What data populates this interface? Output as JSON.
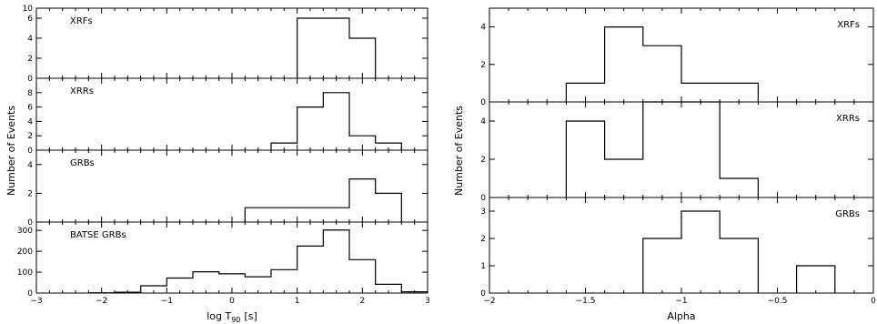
{
  "chart_data": [
    {
      "type": "histogram",
      "xlabel": "log T",
      "xlabel_sub": "90",
      "xlabel_unit": "[s]",
      "ylabel": "Number of Events",
      "xlim": [
        -3,
        3
      ],
      "x_ticks": [
        -3,
        -2,
        -1,
        0,
        1,
        2,
        3
      ],
      "x_tick_labels": [
        "−3",
        "−2",
        "−1",
        "0",
        "1",
        "2",
        "3"
      ],
      "minor_step": 0.2,
      "panels": [
        {
          "label": "XRFs",
          "ylim": [
            0,
            7
          ],
          "y_ticks": [
            0,
            2,
            4,
            6
          ],
          "y_tick_labels": [
            "0",
            "2",
            "4",
            "6"
          ],
          "top_label": "10",
          "bins": [
            {
              "x0": 1.0,
              "x1": 1.8,
              "y": 6
            },
            {
              "x0": 1.8,
              "x1": 2.2,
              "y": 4
            }
          ]
        },
        {
          "label": "XRRs",
          "ylim": [
            0,
            10
          ],
          "y_ticks": [
            0,
            2,
            4,
            6,
            8
          ],
          "y_tick_labels": [
            "0",
            "2",
            "4",
            "6",
            "8"
          ],
          "bins": [
            {
              "x0": 0.6,
              "x1": 1.0,
              "y": 1
            },
            {
              "x0": 1.0,
              "x1": 1.4,
              "y": 6
            },
            {
              "x0": 1.4,
              "x1": 1.8,
              "y": 8
            },
            {
              "x0": 1.8,
              "x1": 2.2,
              "y": 2
            },
            {
              "x0": 2.2,
              "x1": 2.6,
              "y": 1
            }
          ]
        },
        {
          "label": "GRBs",
          "ylim": [
            0,
            5
          ],
          "y_ticks": [
            0,
            2,
            4
          ],
          "y_tick_labels": [
            "0",
            "2",
            "4"
          ],
          "bins": [
            {
              "x0": 0.2,
              "x1": 1.4,
              "y": 1
            },
            {
              "x0": 1.4,
              "x1": 1.8,
              "y": 1
            },
            {
              "x0": 1.8,
              "x1": 2.2,
              "y": 3
            },
            {
              "x0": 2.2,
              "x1": 2.6,
              "y": 2
            }
          ]
        },
        {
          "label": "BATSE GRBs",
          "ylim": [
            0,
            340
          ],
          "y_ticks": [
            0,
            100,
            200,
            300
          ],
          "y_tick_labels": [
            "0",
            "100",
            "200",
            "300"
          ],
          "bins": [
            {
              "x0": -2.2,
              "x1": -1.8,
              "y": 1
            },
            {
              "x0": -1.8,
              "x1": -1.4,
              "y": 4
            },
            {
              "x0": -1.4,
              "x1": -1.0,
              "y": 35
            },
            {
              "x0": -1.0,
              "x1": -0.6,
              "y": 72
            },
            {
              "x0": -0.6,
              "x1": -0.2,
              "y": 102
            },
            {
              "x0": -0.2,
              "x1": 0.2,
              "y": 92
            },
            {
              "x0": 0.2,
              "x1": 0.6,
              "y": 78
            },
            {
              "x0": 0.6,
              "x1": 1.0,
              "y": 112
            },
            {
              "x0": 1.0,
              "x1": 1.4,
              "y": 225
            },
            {
              "x0": 1.4,
              "x1": 1.8,
              "y": 302
            },
            {
              "x0": 1.8,
              "x1": 2.2,
              "y": 160
            },
            {
              "x0": 2.2,
              "x1": 2.6,
              "y": 42
            },
            {
              "x0": 2.6,
              "x1": 3.0,
              "y": 6
            }
          ]
        }
      ]
    },
    {
      "type": "histogram",
      "xlabel": "Alpha",
      "ylabel": "Number of Events",
      "xlim": [
        -2,
        0
      ],
      "x_ticks": [
        -2,
        -1.5,
        -1,
        -0.5,
        0
      ],
      "x_tick_labels": [
        "−2",
        "−1.5",
        "−1",
        "−0.5",
        "0"
      ],
      "minor_step": 0.1,
      "panels": [
        {
          "label": "XRFs",
          "ylim": [
            0,
            5
          ],
          "y_ticks": [
            0,
            2,
            4
          ],
          "y_tick_labels": [
            "0",
            "2",
            "4"
          ],
          "bins": [
            {
              "x0": -1.6,
              "x1": -1.4,
              "y": 1
            },
            {
              "x0": -1.4,
              "x1": -1.2,
              "y": 4
            },
            {
              "x0": -1.2,
              "x1": -1.0,
              "y": 3
            },
            {
              "x0": -1.0,
              "x1": -0.6,
              "y": 1
            }
          ]
        },
        {
          "label": "XRRs",
          "ylim": [
            0,
            5
          ],
          "y_ticks": [
            0,
            2,
            4
          ],
          "y_tick_labels": [
            "0",
            "2",
            "4"
          ],
          "bins": [
            {
              "x0": -1.6,
              "x1": -1.4,
              "y": 4
            },
            {
              "x0": -1.4,
              "x1": -1.2,
              "y": 2
            },
            {
              "x0": -1.2,
              "x1": -0.8,
              "y": 5
            },
            {
              "x0": -0.8,
              "x1": -0.6,
              "y": 1
            }
          ]
        },
        {
          "label": "GRBs",
          "ylim": [
            0,
            3.5
          ],
          "y_ticks": [
            0,
            1,
            2,
            3
          ],
          "y_tick_labels": [
            "0",
            "1",
            "2",
            "3"
          ],
          "bins": [
            {
              "x0": -1.2,
              "x1": -1.0,
              "y": 2
            },
            {
              "x0": -1.0,
              "x1": -0.8,
              "y": 3
            },
            {
              "x0": -0.8,
              "x1": -0.6,
              "y": 2
            },
            {
              "x0": -0.4,
              "x1": -0.2,
              "y": 1
            }
          ]
        }
      ]
    }
  ]
}
